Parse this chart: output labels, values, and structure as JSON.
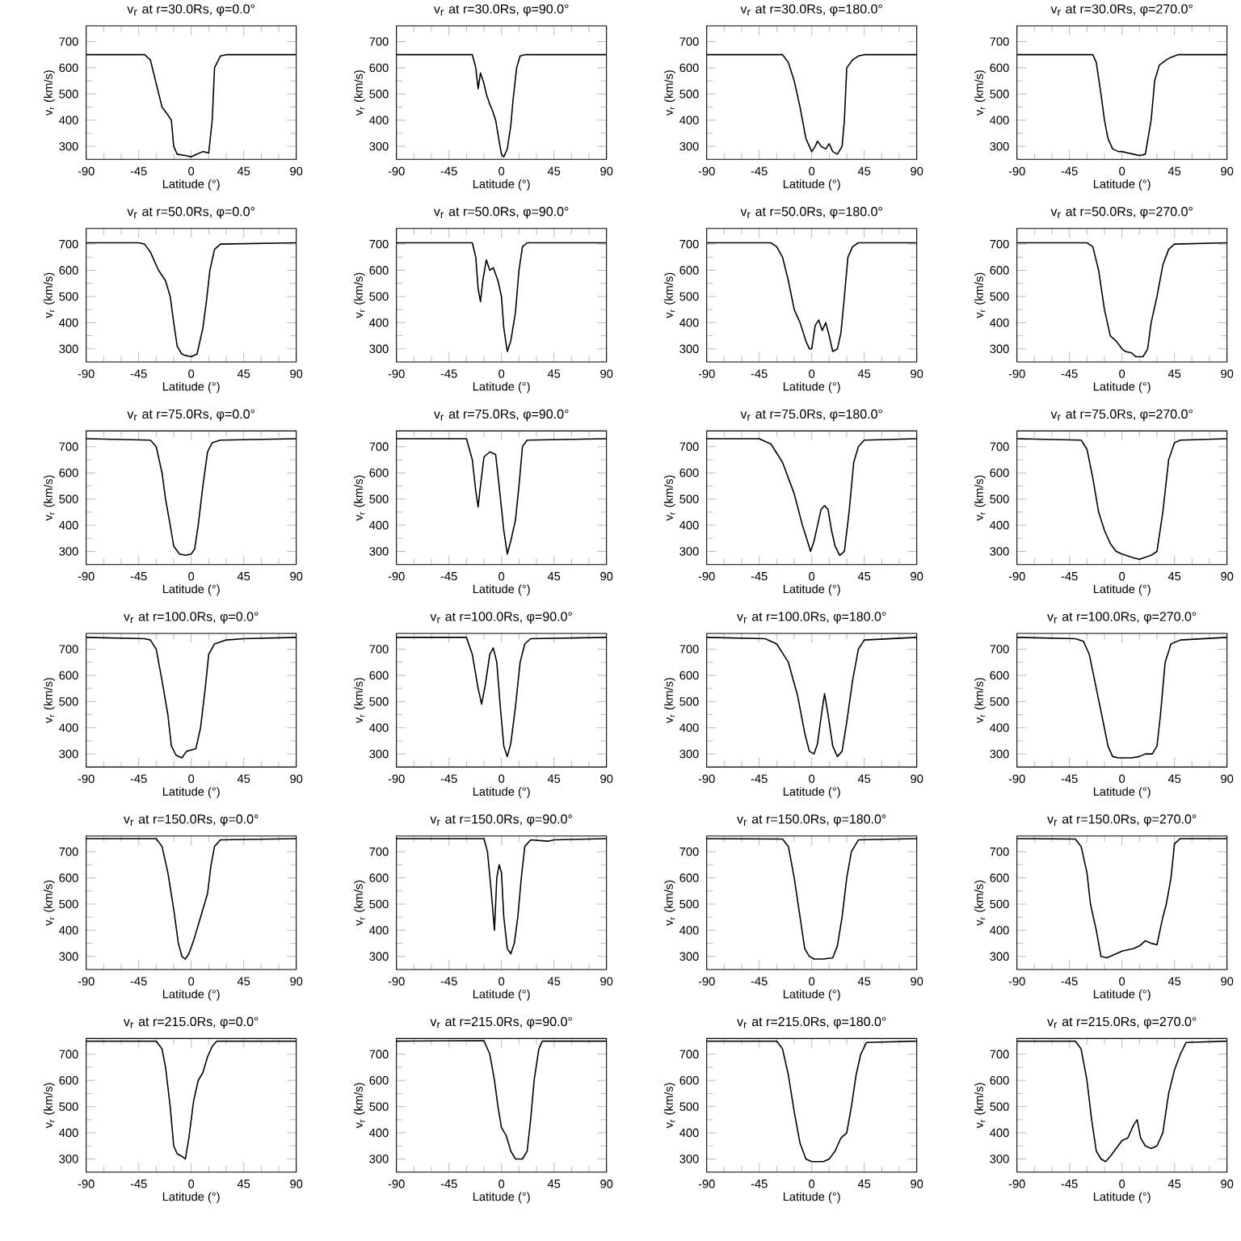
{
  "chart_data": [
    {
      "type": "line",
      "title": "v$_{r}$ at r=30.0Rs, φ=0.0°",
      "xlabel": "Latitude (°)",
      "ylabel": "v$_{r}$ (km/s)",
      "color": "#000000",
      "xlim": [
        -90,
        90
      ],
      "ylim": [
        250,
        760
      ],
      "xticks": [
        -90,
        -45,
        0,
        45,
        90
      ],
      "yticks": [
        300,
        400,
        500,
        600,
        700
      ],
      "x": [
        -90,
        -40,
        -35,
        -30,
        -25,
        -20,
        -17,
        -15,
        -12,
        -5,
        0,
        5,
        10,
        15,
        18,
        20,
        25,
        30,
        90
      ],
      "values": [
        650,
        650,
        630,
        540,
        450,
        420,
        400,
        300,
        270,
        265,
        260,
        270,
        280,
        275,
        400,
        600,
        645,
        650,
        650
      ]
    },
    {
      "type": "line",
      "title": "v$_{r}$ at r=30.0Rs, φ=90.0°",
      "xlabel": "Latitude (°)",
      "ylabel": "v$_{r}$ (km/s)",
      "color": "#000000",
      "xlim": [
        -90,
        90
      ],
      "ylim": [
        250,
        760
      ],
      "xticks": [
        -90,
        -45,
        0,
        45,
        90
      ],
      "yticks": [
        300,
        400,
        500,
        600,
        700
      ],
      "x": [
        -90,
        -25,
        -22,
        -20,
        -18,
        -15,
        -13,
        -10,
        -8,
        -5,
        -2,
        0,
        2,
        5,
        8,
        10,
        13,
        16,
        20,
        90
      ],
      "values": [
        650,
        650,
        600,
        520,
        580,
        540,
        500,
        460,
        440,
        400,
        320,
        270,
        260,
        290,
        380,
        480,
        600,
        645,
        650,
        650
      ]
    },
    {
      "type": "line",
      "title": "v$_{r}$ at r=30.0Rs, φ=180.0°",
      "xlabel": "Latitude (°)",
      "ylabel": "v$_{r}$ (km/s)",
      "color": "#000000",
      "xlim": [
        -90,
        90
      ],
      "ylim": [
        250,
        760
      ],
      "xticks": [
        -90,
        -45,
        0,
        45,
        90
      ],
      "yticks": [
        300,
        400,
        500,
        600,
        700
      ],
      "x": [
        -90,
        -25,
        -20,
        -15,
        -10,
        -5,
        0,
        3,
        5,
        8,
        12,
        15,
        18,
        22,
        26,
        28,
        30,
        35,
        40,
        45,
        90
      ],
      "values": [
        650,
        650,
        620,
        550,
        450,
        330,
        280,
        300,
        320,
        300,
        290,
        310,
        280,
        270,
        300,
        400,
        600,
        630,
        645,
        650,
        650
      ]
    },
    {
      "type": "line",
      "title": "v$_{r}$ at r=30.0Rs, φ=270.0°",
      "xlabel": "Latitude (°)",
      "ylabel": "v$_{r}$ (km/s)",
      "color": "#000000",
      "xlim": [
        -90,
        90
      ],
      "ylim": [
        250,
        760
      ],
      "xticks": [
        -90,
        -45,
        0,
        45,
        90
      ],
      "yticks": [
        300,
        400,
        500,
        600,
        700
      ],
      "x": [
        -90,
        -25,
        -22,
        -18,
        -15,
        -12,
        -8,
        -3,
        0,
        5,
        10,
        15,
        20,
        25,
        28,
        32,
        38,
        42,
        48,
        90
      ],
      "values": [
        650,
        650,
        620,
        500,
        400,
        330,
        290,
        280,
        280,
        275,
        270,
        265,
        270,
        400,
        550,
        610,
        630,
        640,
        650,
        650
      ]
    },
    {
      "type": "line",
      "title": "v$_{r}$ at r=50.0Rs, φ=0.0°",
      "xlabel": "Latitude (°)",
      "ylabel": "v$_{r}$ (km/s)",
      "color": "#000000",
      "xlim": [
        -90,
        90
      ],
      "ylim": [
        250,
        760
      ],
      "xticks": [
        -90,
        -45,
        0,
        45,
        90
      ],
      "yticks": [
        300,
        400,
        500,
        600,
        700
      ],
      "x": [
        -90,
        -45,
        -40,
        -35,
        -28,
        -22,
        -18,
        -15,
        -12,
        -8,
        -5,
        0,
        5,
        10,
        13,
        16,
        20,
        25,
        90
      ],
      "values": [
        705,
        705,
        700,
        670,
        600,
        560,
        500,
        400,
        310,
        280,
        275,
        270,
        280,
        380,
        480,
        600,
        680,
        700,
        705
      ]
    },
    {
      "type": "line",
      "title": "v$_{r}$ at r=50.0Rs, φ=90.0°",
      "xlabel": "Latitude (°)",
      "ylabel": "v$_{r}$ (km/s)",
      "color": "#000000",
      "xlim": [
        -90,
        90
      ],
      "ylim": [
        250,
        760
      ],
      "xticks": [
        -90,
        -45,
        0,
        45,
        90
      ],
      "yticks": [
        300,
        400,
        500,
        600,
        700
      ],
      "x": [
        -90,
        -25,
        -22,
        -20,
        -18,
        -16,
        -13,
        -10,
        -7,
        -3,
        0,
        2,
        5,
        8,
        12,
        15,
        18,
        22,
        90
      ],
      "values": [
        705,
        705,
        650,
        530,
        480,
        560,
        640,
        600,
        610,
        560,
        500,
        380,
        290,
        330,
        440,
        600,
        690,
        705,
        705
      ]
    },
    {
      "type": "line",
      "title": "v$_{r}$ at r=50.0Rs, φ=180.0°",
      "xlabel": "Latitude (°)",
      "ylabel": "v$_{r}$ (km/s)",
      "color": "#000000",
      "xlim": [
        -90,
        90
      ],
      "ylim": [
        250,
        760
      ],
      "xticks": [
        -90,
        -45,
        0,
        45,
        90
      ],
      "yticks": [
        300,
        400,
        500,
        600,
        700
      ],
      "x": [
        -90,
        -35,
        -30,
        -25,
        -20,
        -15,
        -10,
        -5,
        -2,
        0,
        3,
        6,
        9,
        12,
        15,
        18,
        22,
        25,
        28,
        31,
        35,
        40,
        90
      ],
      "values": [
        705,
        705,
        690,
        650,
        560,
        450,
        400,
        330,
        300,
        300,
        390,
        410,
        370,
        400,
        350,
        290,
        300,
        360,
        500,
        650,
        690,
        705,
        705
      ]
    },
    {
      "type": "line",
      "title": "v$_{r}$ at r=50.0Rs, φ=270.0°",
      "xlabel": "Latitude (°)",
      "ylabel": "v$_{r}$ (km/s)",
      "color": "#000000",
      "xlim": [
        -90,
        90
      ],
      "ylim": [
        250,
        760
      ],
      "xticks": [
        -90,
        -45,
        0,
        45,
        90
      ],
      "yticks": [
        300,
        400,
        500,
        600,
        700
      ],
      "x": [
        -90,
        -30,
        -25,
        -20,
        -15,
        -10,
        -5,
        0,
        3,
        8,
        12,
        18,
        22,
        25,
        30,
        35,
        40,
        45,
        90
      ],
      "values": [
        705,
        705,
        690,
        600,
        450,
        350,
        330,
        300,
        290,
        285,
        270,
        270,
        300,
        400,
        500,
        620,
        680,
        700,
        705
      ]
    },
    {
      "type": "line",
      "title": "v$_{r}$ at r=75.0Rs, φ=0.0°",
      "xlabel": "Latitude (°)",
      "ylabel": "v$_{r}$ (km/s)",
      "color": "#000000",
      "xlim": [
        -90,
        90
      ],
      "ylim": [
        250,
        760
      ],
      "xticks": [
        -90,
        -45,
        0,
        45,
        90
      ],
      "yticks": [
        300,
        400,
        500,
        600,
        700
      ],
      "x": [
        -90,
        -35,
        -30,
        -25,
        -22,
        -18,
        -15,
        -10,
        -5,
        0,
        3,
        6,
        10,
        14,
        18,
        25,
        90
      ],
      "values": [
        730,
        725,
        700,
        600,
        500,
        400,
        320,
        290,
        285,
        290,
        310,
        400,
        550,
        680,
        715,
        725,
        730
      ]
    },
    {
      "type": "line",
      "title": "v$_{r}$ at r=75.0Rs, φ=90.0°",
      "xlabel": "Latitude (°)",
      "ylabel": "v$_{r}$ (km/s)",
      "color": "#000000",
      "xlim": [
        -90,
        90
      ],
      "ylim": [
        250,
        760
      ],
      "xticks": [
        -90,
        -45,
        0,
        45,
        90
      ],
      "yticks": [
        300,
        400,
        500,
        600,
        700
      ],
      "x": [
        -90,
        -30,
        -25,
        -22,
        -20,
        -18,
        -15,
        -10,
        -5,
        -2,
        2,
        5,
        8,
        12,
        15,
        18,
        22,
        90
      ],
      "values": [
        730,
        730,
        650,
        530,
        470,
        550,
        660,
        680,
        670,
        550,
        380,
        290,
        340,
        420,
        550,
        700,
        725,
        730
      ]
    },
    {
      "type": "line",
      "title": "v$_{r}$ at r=75.0Rs, φ=180.0°",
      "xlabel": "Latitude (°)",
      "ylabel": "v$_{r}$ (km/s)",
      "color": "#000000",
      "xlim": [
        -90,
        90
      ],
      "ylim": [
        250,
        760
      ],
      "xticks": [
        -90,
        -45,
        0,
        45,
        90
      ],
      "yticks": [
        300,
        400,
        500,
        600,
        700
      ],
      "x": [
        -90,
        -45,
        -35,
        -25,
        -15,
        -8,
        -3,
        -1,
        2,
        5,
        8,
        11,
        14,
        17,
        20,
        24,
        28,
        32,
        36,
        40,
        45,
        90
      ],
      "values": [
        730,
        730,
        710,
        640,
        520,
        400,
        330,
        300,
        340,
        400,
        460,
        475,
        460,
        380,
        320,
        285,
        300,
        450,
        640,
        700,
        725,
        730
      ]
    },
    {
      "type": "line",
      "title": "v$_{r}$ at r=75.0Rs, φ=270.0°",
      "xlabel": "Latitude (°)",
      "ylabel": "v$_{r}$ (km/s)",
      "color": "#000000",
      "xlim": [
        -90,
        90
      ],
      "ylim": [
        250,
        760
      ],
      "xticks": [
        -90,
        -45,
        0,
        45,
        90
      ],
      "yticks": [
        300,
        400,
        500,
        600,
        700
      ],
      "x": [
        -90,
        -35,
        -30,
        -25,
        -20,
        -15,
        -10,
        -5,
        0,
        10,
        15,
        25,
        30,
        35,
        40,
        45,
        50,
        90
      ],
      "values": [
        730,
        725,
        690,
        580,
        450,
        380,
        330,
        300,
        290,
        275,
        270,
        285,
        300,
        450,
        650,
        715,
        725,
        730
      ]
    },
    {
      "type": "line",
      "title": "v$_{r}$ at r=100.0Rs, φ=0.0°",
      "xlabel": "Latitude (°)",
      "ylabel": "v$_{r}$ (km/s)",
      "color": "#000000",
      "xlim": [
        -90,
        90
      ],
      "ylim": [
        250,
        760
      ],
      "xticks": [
        -90,
        -45,
        0,
        45,
        90
      ],
      "yticks": [
        300,
        400,
        500,
        600,
        700
      ],
      "x": [
        -90,
        -40,
        -35,
        -30,
        -25,
        -20,
        -17,
        -13,
        -8,
        -4,
        0,
        4,
        8,
        12,
        15,
        20,
        30,
        45,
        90
      ],
      "values": [
        745,
        740,
        735,
        700,
        580,
        450,
        330,
        295,
        285,
        310,
        315,
        320,
        400,
        550,
        680,
        720,
        735,
        740,
        745
      ]
    },
    {
      "type": "line",
      "title": "v$_{r}$ at r=100.0Rs, φ=90.0°",
      "xlabel": "Latitude (°)",
      "ylabel": "v$_{r}$ (km/s)",
      "color": "#000000",
      "xlim": [
        -90,
        90
      ],
      "ylim": [
        250,
        760
      ],
      "xticks": [
        -90,
        -45,
        0,
        45,
        90
      ],
      "yticks": [
        300,
        400,
        500,
        600,
        700
      ],
      "x": [
        -90,
        -30,
        -25,
        -20,
        -17,
        -14,
        -10,
        -7,
        -4,
        -1,
        2,
        5,
        8,
        12,
        16,
        20,
        25,
        90
      ],
      "values": [
        745,
        745,
        680,
        550,
        490,
        560,
        680,
        705,
        650,
        480,
        330,
        290,
        340,
        480,
        650,
        720,
        740,
        745
      ]
    },
    {
      "type": "line",
      "title": "v$_{r}$ at r=100.0Rs, φ=180.0°",
      "xlabel": "Latitude (°)",
      "ylabel": "v$_{r}$ (km/s)",
      "color": "#000000",
      "xlim": [
        -90,
        90
      ],
      "ylim": [
        250,
        760
      ],
      "xticks": [
        -90,
        -45,
        0,
        45,
        90
      ],
      "yticks": [
        300,
        400,
        500,
        600,
        700
      ],
      "x": [
        -90,
        -40,
        -30,
        -20,
        -12,
        -6,
        -2,
        2,
        5,
        8,
        11,
        14,
        18,
        22,
        26,
        30,
        35,
        40,
        45,
        90
      ],
      "values": [
        745,
        740,
        720,
        650,
        520,
        380,
        310,
        300,
        340,
        440,
        530,
        450,
        330,
        290,
        310,
        420,
        580,
        700,
        735,
        745
      ]
    },
    {
      "type": "line",
      "title": "v$_{r}$ at r=100.0Rs, φ=270.0°",
      "xlabel": "Latitude (°)",
      "ylabel": "v$_{r}$ (km/s)",
      "color": "#000000",
      "xlim": [
        -90,
        90
      ],
      "ylim": [
        250,
        760
      ],
      "xticks": [
        -90,
        -45,
        0,
        45,
        90
      ],
      "yticks": [
        300,
        400,
        500,
        600,
        700
      ],
      "x": [
        -90,
        -40,
        -33,
        -28,
        -22,
        -16,
        -12,
        -8,
        -3,
        2,
        8,
        15,
        20,
        26,
        30,
        33,
        37,
        42,
        50,
        90
      ],
      "values": [
        745,
        740,
        730,
        680,
        550,
        420,
        330,
        290,
        285,
        285,
        285,
        290,
        300,
        300,
        330,
        450,
        650,
        720,
        735,
        745
      ]
    },
    {
      "type": "line",
      "title": "v$_{r}$ at r=150.0Rs, φ=0.0°",
      "xlabel": "Latitude (°)",
      "ylabel": "v$_{r}$ (km/s)",
      "color": "#000000",
      "xlim": [
        -90,
        90
      ],
      "ylim": [
        250,
        760
      ],
      "xticks": [
        -90,
        -45,
        0,
        45,
        90
      ],
      "yticks": [
        300,
        400,
        500,
        600,
        700
      ],
      "x": [
        -90,
        -30,
        -25,
        -20,
        -15,
        -11,
        -8,
        -5,
        -2,
        2,
        6,
        10,
        14,
        17,
        20,
        25,
        90
      ],
      "values": [
        750,
        750,
        720,
        620,
        480,
        350,
        300,
        290,
        310,
        360,
        420,
        480,
        540,
        650,
        720,
        745,
        750
      ]
    },
    {
      "type": "line",
      "title": "v$_{r}$ at r=150.0Rs, φ=90.0°",
      "xlabel": "Latitude (°)",
      "ylabel": "v$_{r}$ (km/s)",
      "color": "#000000",
      "xlim": [
        -90,
        90
      ],
      "ylim": [
        250,
        760
      ],
      "xticks": [
        -90,
        -45,
        0,
        45,
        90
      ],
      "yticks": [
        300,
        400,
        500,
        600,
        700
      ],
      "x": [
        -90,
        -15,
        -12,
        -9,
        -6,
        -4,
        -2,
        0,
        2,
        5,
        8,
        11,
        14,
        17,
        20,
        25,
        40,
        45,
        90
      ],
      "values": [
        750,
        750,
        700,
        560,
        400,
        600,
        650,
        620,
        450,
        330,
        310,
        350,
        450,
        600,
        720,
        745,
        740,
        745,
        750
      ]
    },
    {
      "type": "line",
      "title": "v$_{r}$ at r=150.0Rs, φ=180.0°",
      "xlabel": "Latitude (°)",
      "ylabel": "v$_{r}$ (km/s)",
      "color": "#000000",
      "xlim": [
        -90,
        90
      ],
      "ylim": [
        250,
        760
      ],
      "xticks": [
        -90,
        -45,
        0,
        45,
        90
      ],
      "yticks": [
        300,
        400,
        500,
        600,
        700
      ],
      "x": [
        -90,
        -25,
        -20,
        -15,
        -10,
        -6,
        -2,
        2,
        10,
        18,
        22,
        26,
        30,
        34,
        40,
        90
      ],
      "values": [
        750,
        748,
        720,
        600,
        450,
        330,
        300,
        290,
        290,
        295,
        340,
        450,
        600,
        700,
        745,
        750
      ]
    },
    {
      "type": "line",
      "title": "v$_{r}$ at r=150.0Rs, φ=270.0°",
      "xlabel": "Latitude (°)",
      "ylabel": "v$_{r}$ (km/s)",
      "color": "#000000",
      "xlim": [
        -90,
        90
      ],
      "ylim": [
        250,
        760
      ],
      "xticks": [
        -90,
        -45,
        0,
        45,
        90
      ],
      "yticks": [
        300,
        400,
        500,
        600,
        700
      ],
      "x": [
        -90,
        -40,
        -35,
        -30,
        -27,
        -22,
        -18,
        -13,
        -5,
        0,
        10,
        15,
        20,
        25,
        30,
        35,
        38,
        42,
        45,
        50,
        90
      ],
      "values": [
        750,
        748,
        720,
        620,
        500,
        400,
        300,
        295,
        310,
        320,
        330,
        340,
        360,
        350,
        345,
        450,
        500,
        600,
        730,
        750,
        750
      ]
    },
    {
      "type": "line",
      "title": "v$_{r}$ at r=215.0Rs, φ=0.0°",
      "xlabel": "Latitude (°)",
      "ylabel": "v$_{r}$ (km/s)",
      "color": "#000000",
      "xlim": [
        -90,
        90
      ],
      "ylim": [
        250,
        760
      ],
      "xticks": [
        -90,
        -45,
        0,
        45,
        90
      ],
      "yticks": [
        300,
        400,
        500,
        600,
        700
      ],
      "x": [
        -90,
        -30,
        -25,
        -22,
        -18,
        -15,
        -12,
        -8,
        -5,
        -2,
        2,
        6,
        10,
        14,
        18,
        22,
        90
      ],
      "values": [
        750,
        750,
        720,
        650,
        500,
        350,
        320,
        310,
        300,
        380,
        520,
        600,
        630,
        690,
        730,
        750,
        750
      ]
    },
    {
      "type": "line",
      "title": "v$_{r}$ at r=215.0Rs, φ=90.0°",
      "xlabel": "Latitude (°)",
      "ylabel": "v$_{r}$ (km/s)",
      "color": "#000000",
      "xlim": [
        -90,
        90
      ],
      "ylim": [
        250,
        760
      ],
      "xticks": [
        -90,
        -45,
        0,
        45,
        90
      ],
      "yticks": [
        300,
        400,
        500,
        600,
        700
      ],
      "x": [
        -90,
        -15,
        -10,
        -6,
        -3,
        0,
        4,
        8,
        12,
        18,
        22,
        25,
        28,
        32,
        35,
        90
      ],
      "values": [
        750,
        752,
        700,
        600,
        500,
        420,
        390,
        330,
        300,
        300,
        330,
        450,
        600,
        720,
        750,
        750
      ]
    },
    {
      "type": "line",
      "title": "v$_{r}$ at r=215.0Rs, φ=180.0°",
      "xlabel": "Latitude (°)",
      "ylabel": "v$_{r}$ (km/s)",
      "color": "#000000",
      "xlim": [
        -90,
        90
      ],
      "ylim": [
        250,
        760
      ],
      "xticks": [
        -90,
        -45,
        0,
        45,
        90
      ],
      "yticks": [
        300,
        400,
        500,
        600,
        700
      ],
      "x": [
        -90,
        -30,
        -25,
        -20,
        -15,
        -10,
        -5,
        0,
        10,
        15,
        20,
        25,
        30,
        34,
        38,
        42,
        47,
        90
      ],
      "values": [
        750,
        750,
        720,
        620,
        480,
        360,
        300,
        290,
        290,
        300,
        330,
        380,
        400,
        500,
        620,
        700,
        745,
        750
      ]
    },
    {
      "type": "line",
      "title": "v$_{r}$ at r=215.0Rs, φ=270.0°",
      "xlabel": "Latitude (°)",
      "ylabel": "v$_{r}$ (km/s)",
      "color": "#000000",
      "xlim": [
        -90,
        90
      ],
      "ylim": [
        250,
        760
      ],
      "xticks": [
        -90,
        -45,
        0,
        45,
        90
      ],
      "yticks": [
        300,
        400,
        500,
        600,
        700
      ],
      "x": [
        -90,
        -40,
        -35,
        -30,
        -26,
        -22,
        -18,
        -14,
        -10,
        -5,
        0,
        5,
        10,
        13,
        16,
        20,
        25,
        30,
        35,
        40,
        45,
        50,
        55,
        90
      ],
      "values": [
        750,
        750,
        720,
        600,
        450,
        330,
        300,
        290,
        310,
        340,
        370,
        380,
        430,
        450,
        380,
        350,
        340,
        350,
        400,
        550,
        640,
        700,
        745,
        750
      ]
    }
  ]
}
